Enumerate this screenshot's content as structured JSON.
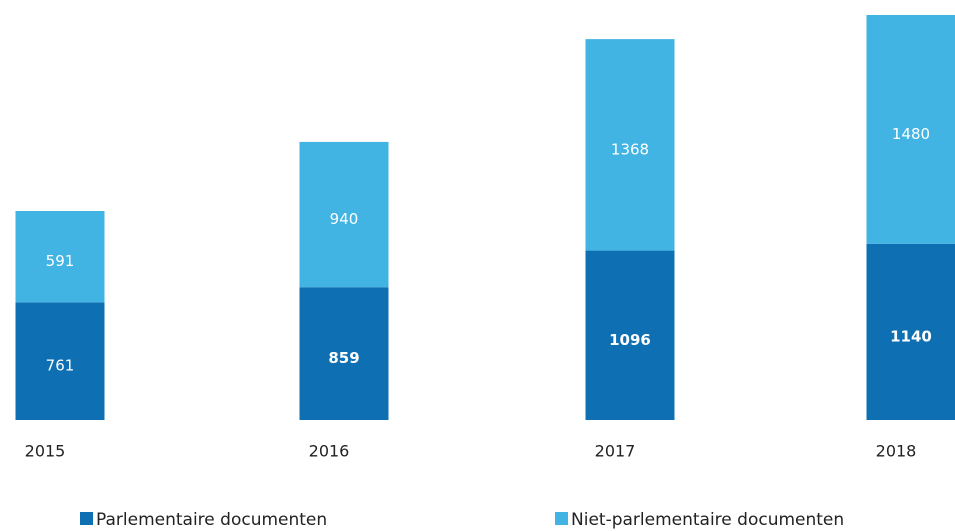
{
  "chart_data": {
    "type": "stacked-bar",
    "categories": [
      "2015",
      "2016",
      "2017",
      "2018"
    ],
    "series": [
      {
        "name": "Parlementaire documenten",
        "color": "#0f6fb3",
        "values": [
          761,
          859,
          1096,
          1140
        ]
      },
      {
        "name": "Niet-parlementaire documenten",
        "color": "#41b4e3",
        "values": [
          591,
          940,
          1368,
          1480
        ]
      }
    ]
  }
}
